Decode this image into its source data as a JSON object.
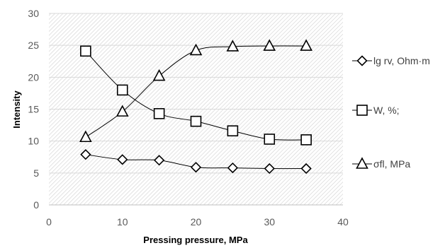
{
  "chart_data": {
    "type": "line",
    "xlabel": "Pressing pressure, MPa",
    "ylabel": "Intensity",
    "xlim": [
      0,
      40
    ],
    "ylim": [
      0,
      30
    ],
    "xticks": [
      "0",
      "10",
      "20",
      "30",
      "40"
    ],
    "yticks": [
      "0",
      "5",
      "10",
      "15",
      "20",
      "25",
      "30"
    ],
    "grid": "horizontal",
    "legend_position": "right",
    "x": [
      5,
      10,
      15,
      20,
      25,
      30,
      35
    ],
    "series": [
      {
        "name": "lg rv, Ohm·m",
        "marker": "diamond",
        "values": [
          7.9,
          7.1,
          7.0,
          5.9,
          5.8,
          5.7,
          5.7
        ]
      },
      {
        "name": "W, %;",
        "marker": "square",
        "values": [
          24.1,
          18.0,
          14.3,
          13.1,
          11.6,
          10.3,
          10.2
        ]
      },
      {
        "name": "σfl, MPa",
        "marker": "triangle",
        "values": [
          10.6,
          14.6,
          20.2,
          24.2,
          24.8,
          24.9,
          24.9
        ]
      }
    ],
    "colors": {
      "line": "#000000",
      "grid": "#d9d9d9",
      "hatch": "#d0d0d0",
      "tick_text": "#595959"
    }
  }
}
